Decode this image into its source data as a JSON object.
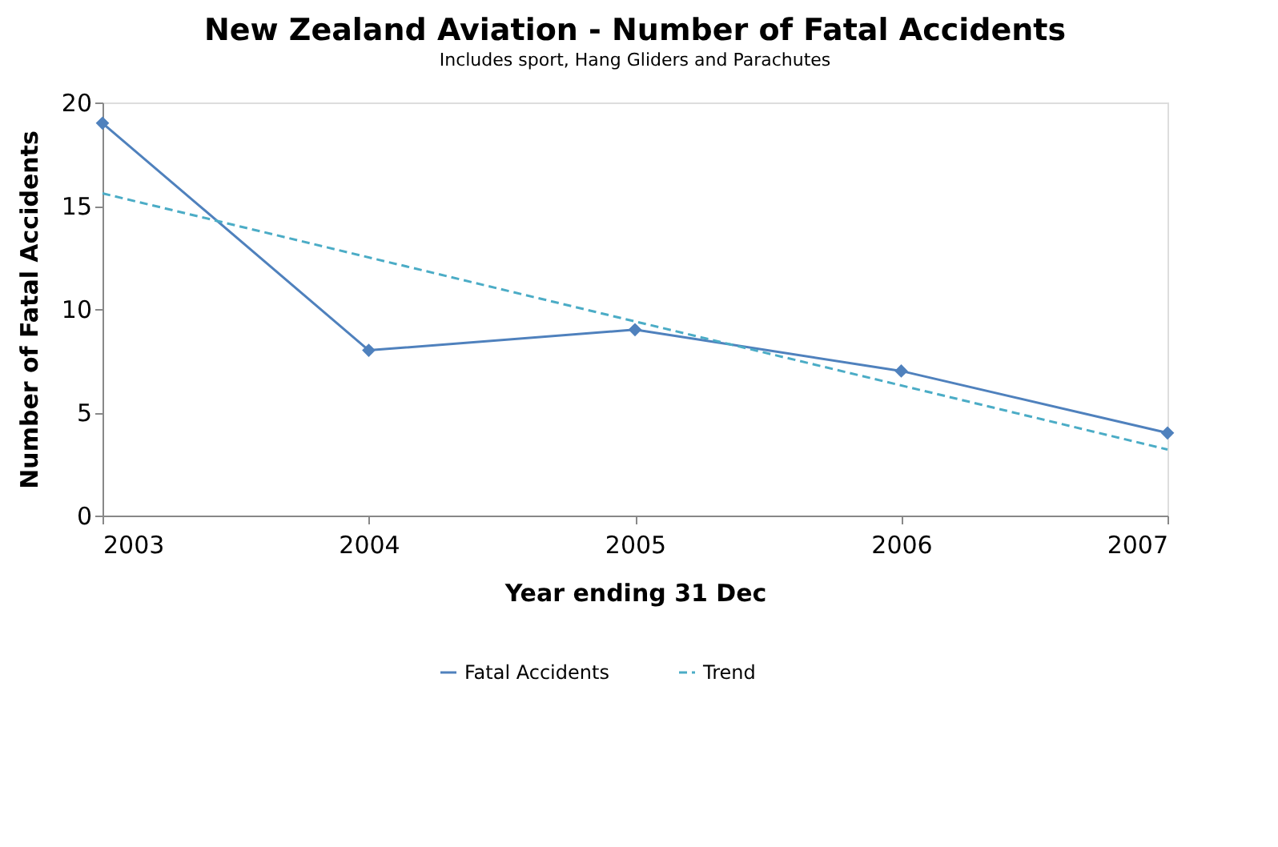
{
  "chart_data": {
    "type": "line",
    "title": "New Zealand Aviation - Number of Fatal Accidents",
    "subtitle": "Includes sport, Hang Gliders and Parachutes",
    "xlabel": "Year ending 31 Dec",
    "ylabel": "Number of Fatal Accidents",
    "x": [
      2003,
      2004,
      2005,
      2006,
      2007
    ],
    "series": [
      {
        "name": "Fatal Accidents",
        "color": "#4f81bd",
        "values": [
          19,
          8,
          9,
          7,
          4
        ],
        "marker": "diamond",
        "line_style": "solid"
      },
      {
        "name": "Trend",
        "type": "line",
        "color": "#4bacc6",
        "x": [
          2003,
          2007
        ],
        "values": [
          15.6,
          3.2
        ],
        "marker": "none",
        "line_style": "dashed"
      }
    ],
    "xlim": [
      2003,
      2007
    ],
    "xticks": [
      2003,
      2004,
      2005,
      2006,
      2007
    ],
    "ylim": [
      0,
      20
    ],
    "yticks": [
      0,
      5,
      10,
      15,
      20
    ],
    "grid": false,
    "legend": "bottom"
  }
}
